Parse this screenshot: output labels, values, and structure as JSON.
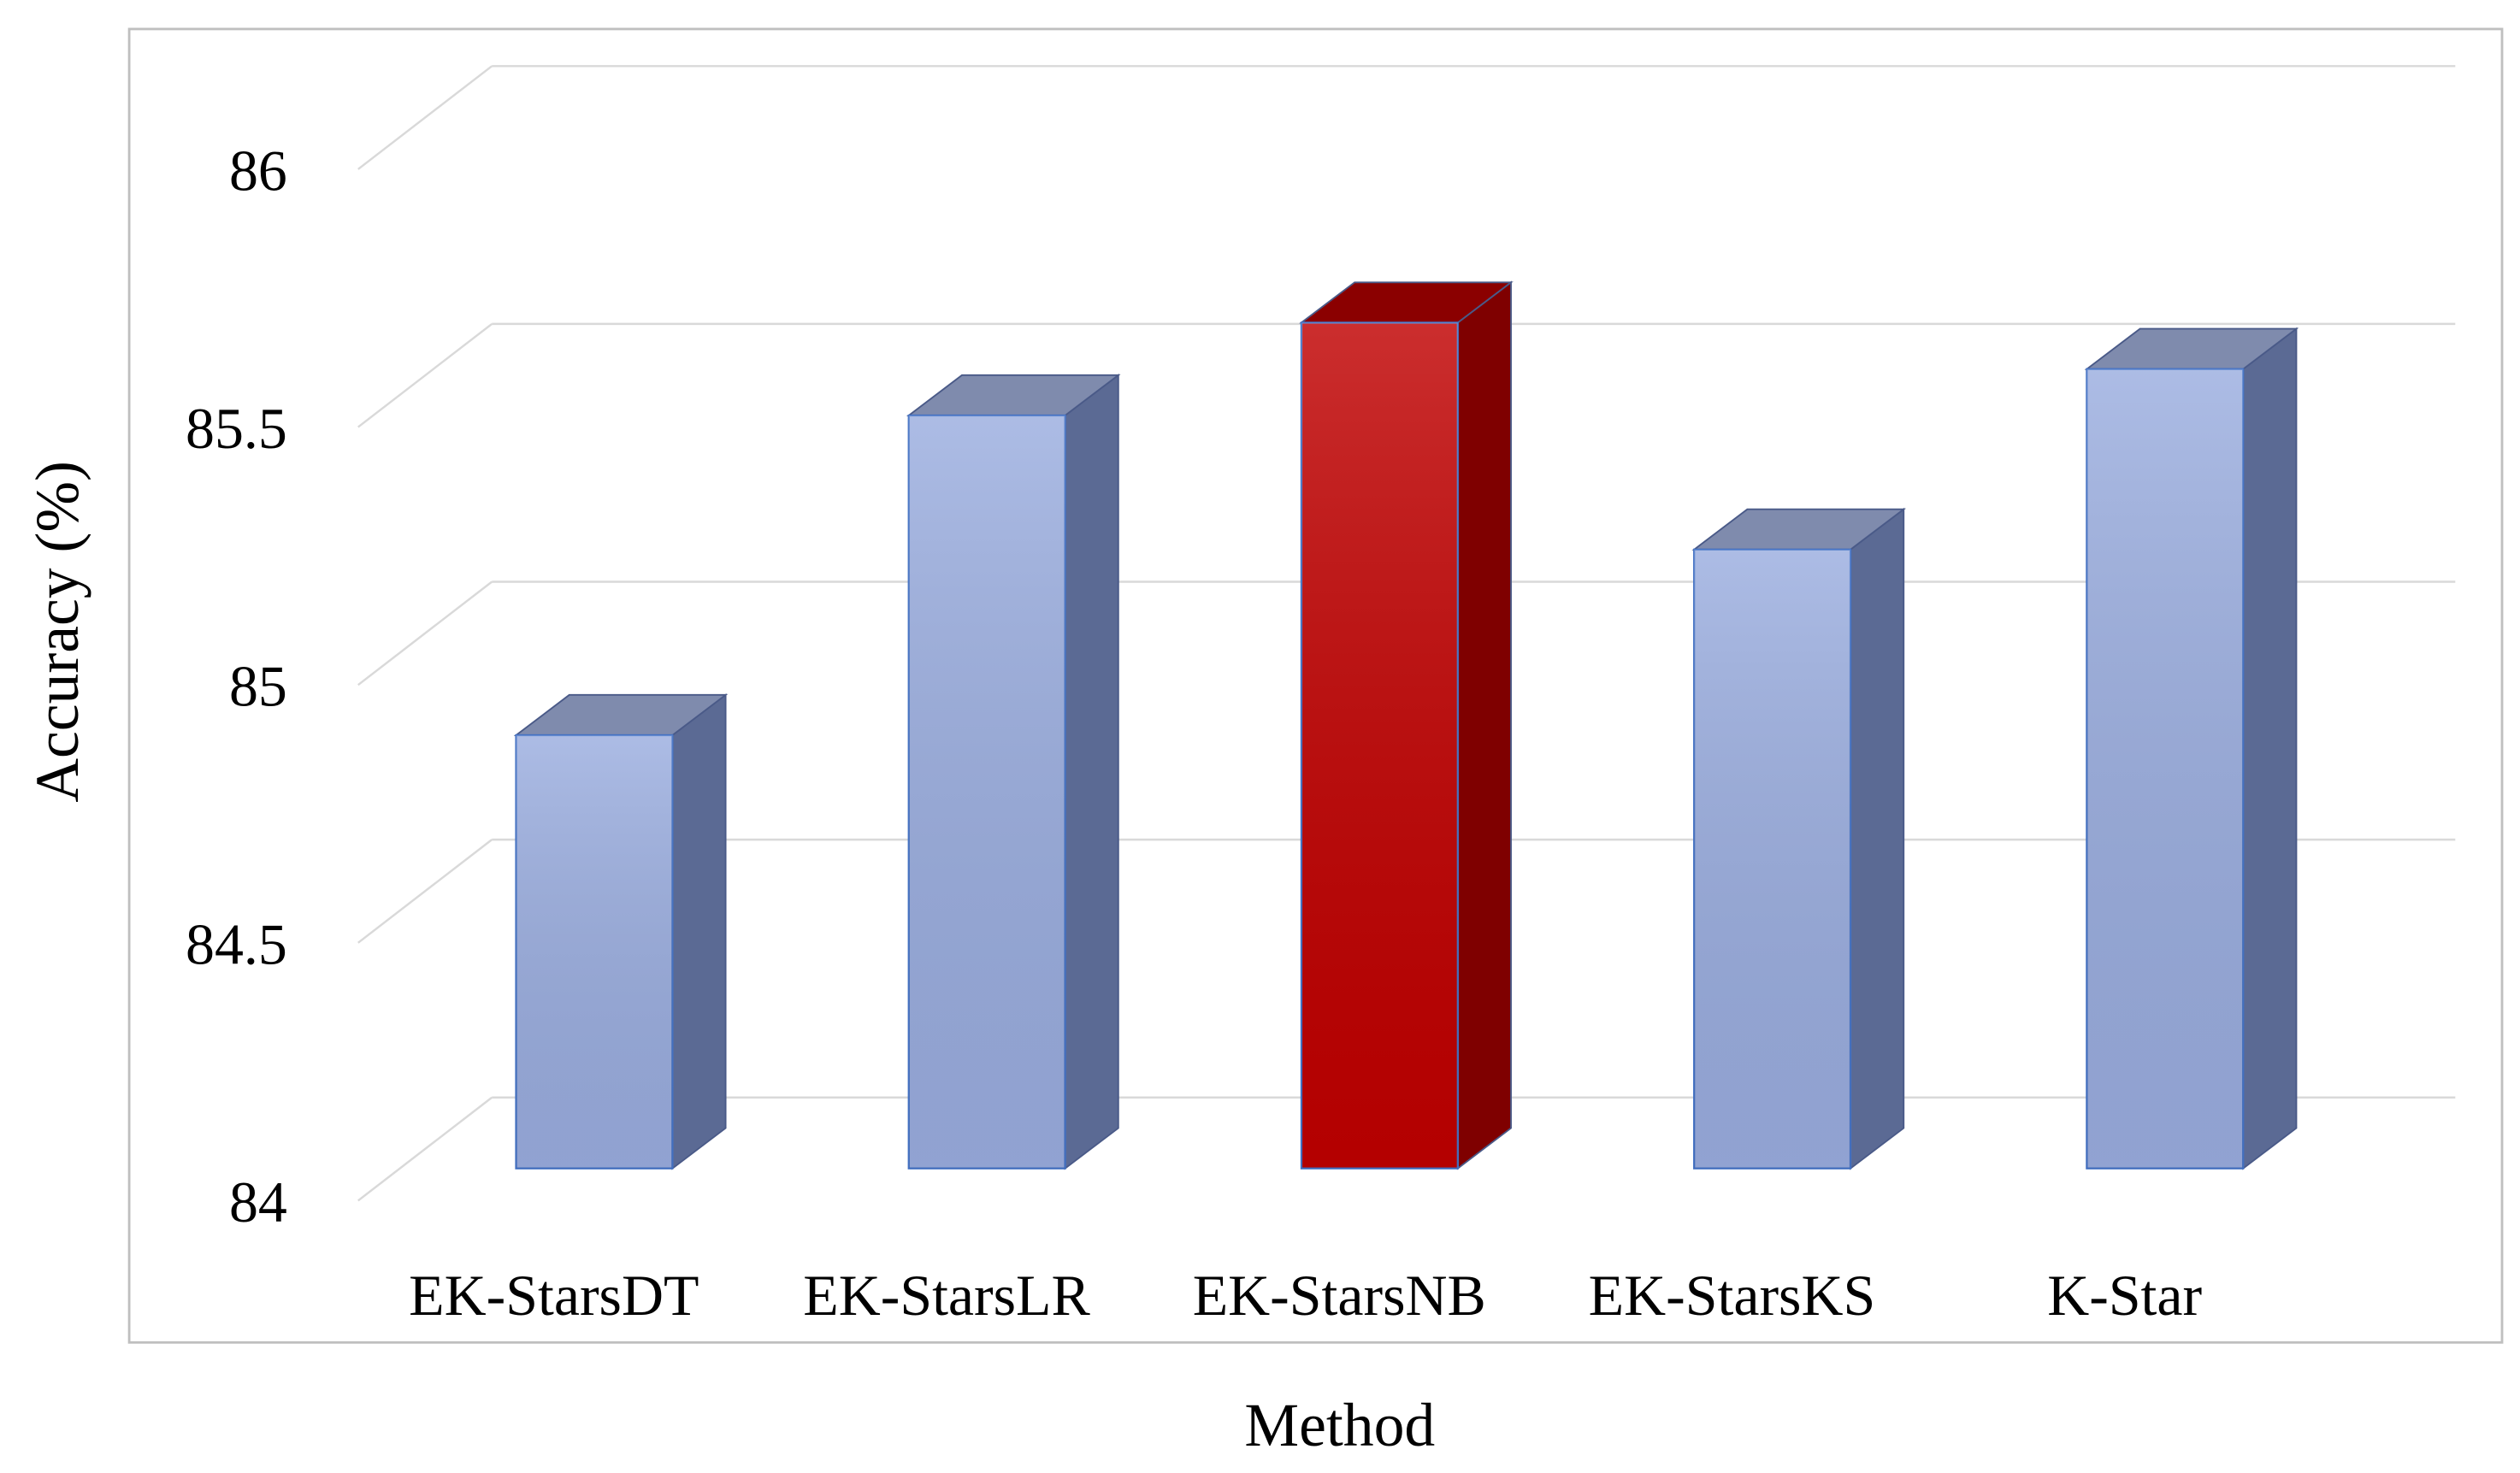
{
  "chart_data": {
    "type": "bar3d",
    "x_label": "Method",
    "y_label": "Accuracy (%)",
    "categories": [
      "EK-StarsDT",
      "EK-StarsLR",
      "EK-StarsNB",
      "EK-StarsKS",
      "K-Star"
    ],
    "values": [
      84.84,
      85.46,
      85.64,
      85.2,
      85.55
    ],
    "colors": [
      "#9aaddf",
      "#9aaddf",
      "#c00000",
      "#9aaddf",
      "#9aaddf"
    ],
    "side_colors": [
      "#5b6a94",
      "#5b6a94",
      "#7f0000",
      "#5b6a94",
      "#5b6a94"
    ],
    "top_colors": [
      "#7f8bad",
      "#7f8bad",
      "#8b0000",
      "#7f8bad",
      "#7f8bad"
    ],
    "ylim": [
      84,
      86
    ],
    "yticks": [
      84,
      84.5,
      85,
      85.5,
      86
    ],
    "grid": true
  }
}
